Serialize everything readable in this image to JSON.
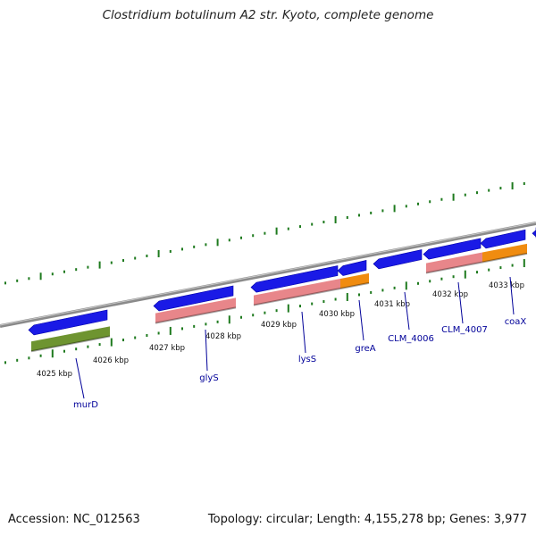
{
  "title": "Clostridium botulinum A2 str. Kyoto, complete genome",
  "footer": {
    "accession": "Accession: NC_012563",
    "summary": "Topology: circular; Length: 4,155,278 bp; Genes: 3,977"
  },
  "colors": {
    "backbone": "#8a8a8a",
    "cds": "#1a1ae6",
    "gene_pink": "#e8868a",
    "gene_green": "#6e9430",
    "gene_orange": "#f08c10",
    "tick": "#1e7a1e",
    "label": "#000099"
  },
  "scale_labels": [
    "4025 kbp",
    "4026 kbp",
    "4027 kbp",
    "4028 kbp",
    "4029 kbp",
    "4030 kbp",
    "4031 kbp",
    "4032 kbp",
    "4033 kbp"
  ],
  "gene_labels": [
    "murD",
    "glyS",
    "lysS",
    "greA",
    "CLM_4006",
    "CLM_4007",
    "coaX"
  ]
}
